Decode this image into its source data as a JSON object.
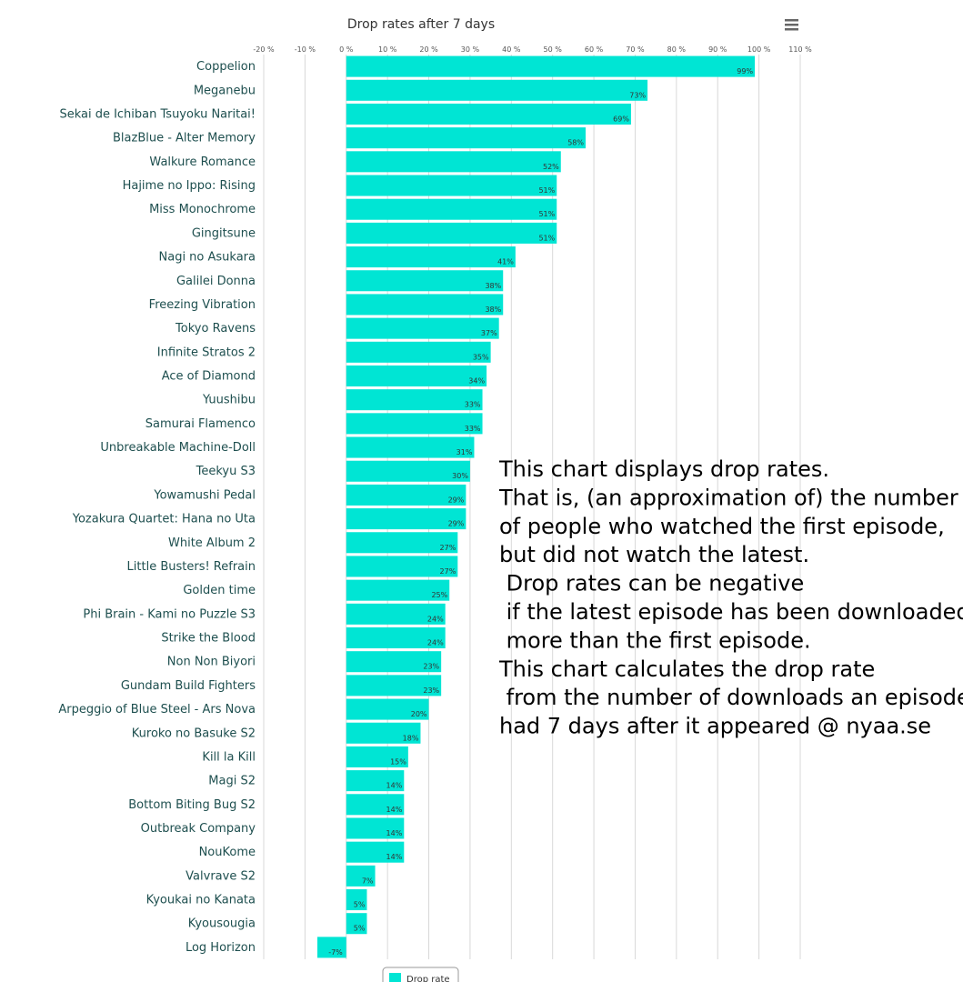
{
  "chart_data": {
    "type": "bar",
    "orientation": "horizontal",
    "title": "Drop rates after 7 days",
    "xlim": [
      -20,
      110
    ],
    "x_ticks": [
      "-20 %",
      "-10 %",
      "0 %",
      "10 %",
      "20 %",
      "30 %",
      "40 %",
      "50 %",
      "60 %",
      "70 %",
      "80 %",
      "90 %",
      "100 %",
      "110 %"
    ],
    "grid": true,
    "legend_position": "bottom-center",
    "categories": [
      "Coppelion",
      "Meganebu",
      "Sekai de Ichiban Tsuyoku Naritai!",
      "BlazBlue - Alter Memory",
      "Walkure Romance",
      "Hajime no Ippo: Rising",
      "Miss Monochrome",
      "Gingitsune",
      "Nagi no Asukara",
      "Galilei Donna",
      "Freezing Vibration",
      "Tokyo Ravens",
      "Infinite Stratos 2",
      "Ace of Diamond",
      "Yuushibu",
      "Samurai Flamenco",
      "Unbreakable Machine-Doll",
      "Teekyu S3",
      "Yowamushi Pedal",
      "Yozakura Quartet: Hana no Uta",
      "White Album 2",
      "Little Busters! Refrain",
      "Golden time",
      "Phi Brain - Kami no Puzzle S3",
      "Strike the Blood",
      "Non Non Biyori",
      "Gundam Build Fighters",
      "Arpeggio of Blue Steel - Ars Nova",
      "Kuroko no Basuke S2",
      "Kill la Kill",
      "Magi S2",
      "Bottom Biting Bug S2",
      "Outbreak Company",
      "NouKome",
      "Valvrave S2",
      "Kyoukai no Kanata",
      "Kyousougia",
      "Log Horizon"
    ],
    "series": [
      {
        "name": "Drop rate",
        "color": "#00e5d4",
        "values": [
          99,
          73,
          69,
          58,
          52,
          51,
          51,
          51,
          41,
          38,
          38,
          37,
          35,
          34,
          33,
          33,
          31,
          30,
          29,
          29,
          27,
          27,
          25,
          24,
          24,
          23,
          23,
          20,
          18,
          15,
          14,
          14,
          14,
          14,
          7,
          5,
          5,
          -7
        ],
        "labels": [
          "99%",
          "73%",
          "69%",
          "58%",
          "52%",
          "51%",
          "51%",
          "51%",
          "41%",
          "38%",
          "38%",
          "37%",
          "35%",
          "34%",
          "33%",
          "33%",
          "31%",
          "30%",
          "29%",
          "29%",
          "27%",
          "27%",
          "25%",
          "24%",
          "24%",
          "23%",
          "23%",
          "20%",
          "18%",
          "15%",
          "14%",
          "14%",
          "14%",
          "14%",
          "7%",
          "5%",
          "5%",
          "-7%"
        ]
      }
    ],
    "annotation": [
      "This chart displays drop rates.",
      "That is, (an approximation of) the number",
      "of people who watched the first episode,",
      "but did not watch the latest.",
      " Drop rates can be negative",
      " if the latest episode has been downloaded",
      " more than the first episode.",
      "This chart calculates the drop rate",
      " from the number of downloads an episode",
      "had 7 days after it appeared @ nyaa.se"
    ]
  },
  "toolbar": {
    "menu_icon": "hamburger-menu-icon"
  }
}
